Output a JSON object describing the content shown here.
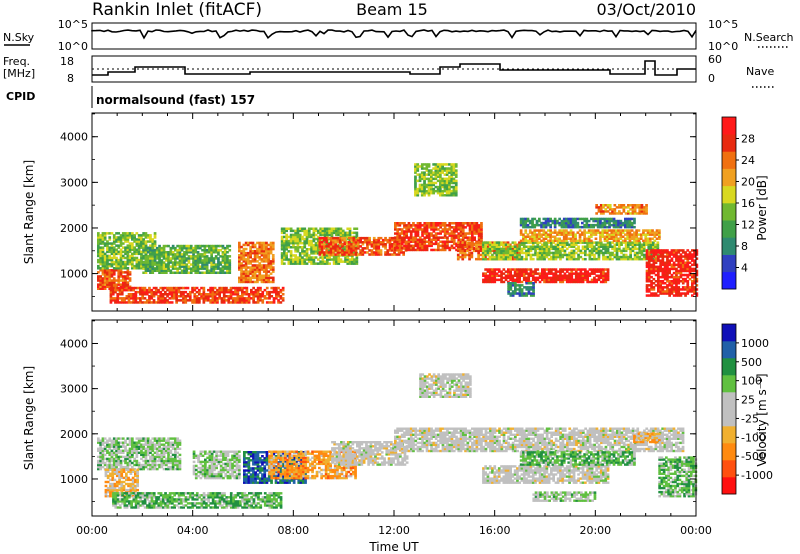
{
  "header": {
    "station": "Rankin Inlet (fitACF)",
    "beam": "Beam 15",
    "date": "03/Oct/2010"
  },
  "summary_panels": {
    "nsky": {
      "label": "N.Sky",
      "ticks": [
        "10^5",
        "10^0"
      ]
    },
    "nsearch": {
      "label": "N.Search",
      "ticks": [
        "10^5",
        "10^0"
      ]
    },
    "freq": {
      "label_line1": "Freq.",
      "label_line2": "[MHz]",
      "ticks": [
        "18",
        "8"
      ]
    },
    "nave": {
      "label": "Nave",
      "ticks": [
        "60",
        "0"
      ]
    },
    "cpid": {
      "label": "CPID",
      "value": "normalsound (fast) 157"
    }
  },
  "colors": {
    "power": [
      "#1f1fff",
      "#3040c0",
      "#2f8a70",
      "#40a048",
      "#70b830",
      "#d8d820",
      "#f0a020",
      "#f07010",
      "#e82a10",
      "#ff1a1a"
    ],
    "velocity": [
      "#ff1010",
      "#ff5010",
      "#ff8a10",
      "#f0b030",
      "#c0c0c0",
      "#c0c0c0",
      "#60c040",
      "#209040",
      "#2060a8",
      "#1010b8"
    ]
  },
  "chart_data": [
    {
      "type": "heatmap",
      "name": "power",
      "xlabel": "",
      "ylabel": "Slant Range [km]",
      "xlim": [
        0,
        24
      ],
      "ylim": [
        180,
        4520
      ],
      "xticks": [
        "00:00",
        "04:00",
        "08:00",
        "12:00",
        "16:00",
        "20:00",
        "00:00"
      ],
      "yticks": [
        "1000",
        "2000",
        "3000",
        "4000"
      ],
      "colorbar": {
        "label": "Power [dB]",
        "ticks": [
          "4",
          "8",
          "12",
          "16",
          "20",
          "24",
          "28"
        ],
        "range": [
          0,
          30
        ]
      },
      "bands": [
        {
          "t0": 0.2,
          "t1": 1.5,
          "r0": 650,
          "r1": 1100,
          "z": 24
        },
        {
          "t0": 0.7,
          "t1": 7.6,
          "r0": 350,
          "r1": 700,
          "z": 25
        },
        {
          "t0": 0.2,
          "t1": 2.5,
          "r0": 1100,
          "r1": 1900,
          "z": 13
        },
        {
          "t0": 2.0,
          "t1": 5.5,
          "r0": 1000,
          "r1": 1600,
          "z": 12
        },
        {
          "t0": 5.8,
          "t1": 7.2,
          "r0": 800,
          "r1": 1700,
          "z": 22
        },
        {
          "t0": 7.5,
          "t1": 10.5,
          "r0": 1200,
          "r1": 2000,
          "z": 14
        },
        {
          "t0": 9.0,
          "t1": 12.5,
          "r0": 1400,
          "r1": 1800,
          "z": 24
        },
        {
          "t0": 12.0,
          "t1": 15.5,
          "r0": 1500,
          "r1": 2100,
          "z": 25
        },
        {
          "t0": 14.5,
          "t1": 17.0,
          "r0": 1300,
          "r1": 1700,
          "z": 23
        },
        {
          "t0": 15.5,
          "t1": 20.5,
          "r0": 800,
          "r1": 1100,
          "z": 27
        },
        {
          "t0": 15.5,
          "t1": 22.5,
          "r0": 1300,
          "r1": 1700,
          "z": 14
        },
        {
          "t0": 17.0,
          "t1": 22.5,
          "r0": 1700,
          "r1": 1950,
          "z": 20
        },
        {
          "t0": 17.0,
          "t1": 21.5,
          "r0": 2000,
          "r1": 2200,
          "z": 8
        },
        {
          "t0": 12.8,
          "t1": 14.5,
          "r0": 2700,
          "r1": 3400,
          "z": 14
        },
        {
          "t0": 22.0,
          "t1": 24.0,
          "r0": 500,
          "r1": 1500,
          "z": 27
        },
        {
          "t0": 16.5,
          "t1": 17.5,
          "r0": 500,
          "r1": 800,
          "z": 8
        },
        {
          "t0": 20.0,
          "t1": 22.0,
          "r0": 2300,
          "r1": 2500,
          "z": 21
        }
      ]
    },
    {
      "type": "heatmap",
      "name": "velocity",
      "xlabel": "Time UT",
      "ylabel": "Slant Range [km]",
      "xlim": [
        0,
        24
      ],
      "ylim": [
        180,
        4520
      ],
      "xticks": [
        "00:00",
        "04:00",
        "08:00",
        "12:00",
        "16:00",
        "20:00",
        "00:00"
      ],
      "yticks": [
        "1000",
        "2000",
        "3000",
        "4000"
      ],
      "colorbar": {
        "label": "Velocity [m s⁻¹]",
        "ticks": [
          "1000",
          "500",
          "100",
          "25",
          "-25",
          "-100",
          "-500",
          "-1000"
        ],
        "range": [
          -1000,
          1000
        ]
      },
      "bands": [
        {
          "t0": 0.2,
          "t1": 3.5,
          "r0": 1200,
          "r1": 1900,
          "z": 200
        },
        {
          "t0": 0.5,
          "t1": 1.8,
          "r0": 600,
          "r1": 1200,
          "z": -300
        },
        {
          "t0": 0.8,
          "t1": 7.5,
          "r0": 350,
          "r1": 700,
          "z": 350
        },
        {
          "t0": 4.0,
          "t1": 5.8,
          "r0": 1000,
          "r1": 1600,
          "z": 200
        },
        {
          "t0": 6.0,
          "t1": 8.5,
          "r0": 900,
          "r1": 1600,
          "z": 700
        },
        {
          "t0": 7.0,
          "t1": 10.5,
          "r0": 1000,
          "r1": 1600,
          "z": -400
        },
        {
          "t0": 9.5,
          "t1": 12.5,
          "r0": 1300,
          "r1": 1800,
          "z": 0
        },
        {
          "t0": 12.0,
          "t1": 23.5,
          "r0": 1600,
          "r1": 2100,
          "z": 0
        },
        {
          "t0": 15.5,
          "t1": 20.5,
          "r0": 900,
          "r1": 1300,
          "z": 0
        },
        {
          "t0": 17.0,
          "t1": 21.5,
          "r0": 1300,
          "r1": 1600,
          "z": 350
        },
        {
          "t0": 17.5,
          "t1": 20.0,
          "r0": 500,
          "r1": 700,
          "z": 200
        },
        {
          "t0": 22.5,
          "t1": 24.0,
          "r0": 600,
          "r1": 1500,
          "z": 300
        },
        {
          "t0": 21.5,
          "t1": 22.5,
          "r0": 1800,
          "r1": 2000,
          "z": -300
        },
        {
          "t0": 13.0,
          "t1": 15.0,
          "r0": 2800,
          "r1": 3300,
          "z": 0
        }
      ]
    }
  ]
}
